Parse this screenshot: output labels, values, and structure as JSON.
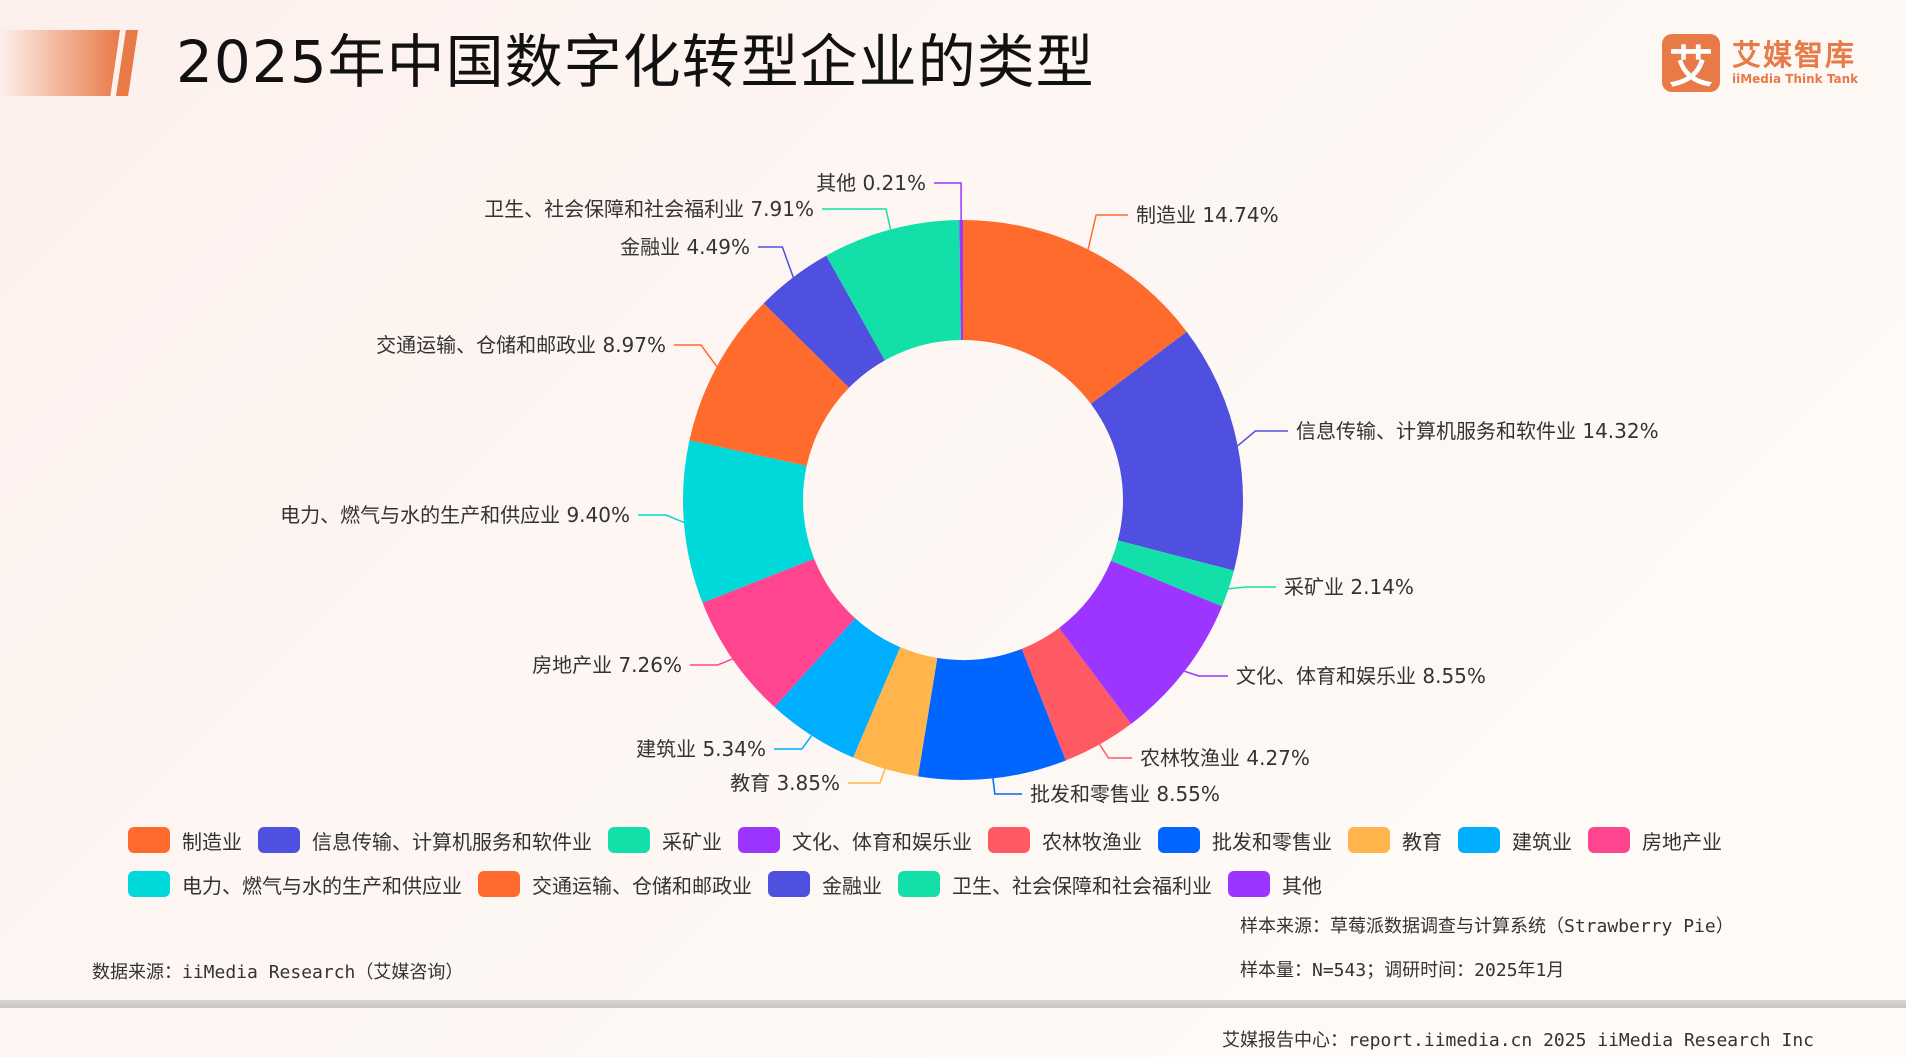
{
  "header": {
    "title": "2025年中国数字化转型企业的类型",
    "logo_glyph": "艾",
    "logo_cn": "艾媒智库",
    "logo_en": "iiMedia Think Tank",
    "brand_color": "#e87a48"
  },
  "chart_data": {
    "type": "pie",
    "subtype": "donut",
    "title": "2025年中国数字化转型企业的类型",
    "unit": "%",
    "start_angle": "12 o'clock, clockwise",
    "legend_position": "bottom",
    "categories": [
      "制造业",
      "信息传输、计算机服务和软件业",
      "采矿业",
      "文化、体育和娱乐业",
      "农林牧渔业",
      "批发和零售业",
      "教育",
      "建筑业",
      "房地产业",
      "电力、燃气与水的生产和供应业",
      "交通运输、仓储和邮政业",
      "金融业",
      "卫生、社会保障和社会福利业",
      "其他"
    ],
    "values": [
      14.74,
      14.32,
      2.14,
      8.55,
      4.27,
      8.55,
      3.85,
      5.34,
      7.26,
      9.4,
      8.97,
      4.49,
      7.91,
      0.21
    ],
    "colors": [
      "#ff6b2c",
      "#5050e0",
      "#12e0a8",
      "#9b35ff",
      "#ff5a62",
      "#0066ff",
      "#ffb54c",
      "#00aeff",
      "#ff4590",
      "#00d9d9",
      "#ff6b2c",
      "#5050e0",
      "#12e0a8",
      "#9b35ff"
    ],
    "labels": [
      "制造业 14.74%",
      "信息传输、计算机服务和软件业 14.32%",
      "采矿业 2.14%",
      "文化、体育和娱乐业 8.55%",
      "农林牧渔业 4.27%",
      "批发和零售业 8.55%",
      "教育 3.85%",
      "建筑业 5.34%",
      "房地产业 7.26%",
      "电力、燃气与水的生产和供应业 9.40%",
      "交通运输、仓储和邮政业 8.97%",
      "金融业 4.49%",
      "卫生、社会保障和社会福利业 7.91%",
      "其他 0.21%"
    ]
  },
  "legend": {
    "rows": [
      [
        0,
        1,
        2,
        3,
        4,
        5,
        6,
        7,
        8
      ],
      [
        9,
        10,
        11,
        12,
        13
      ]
    ]
  },
  "footer": {
    "data_source": "数据来源：iiMedia Research（艾媒咨询）",
    "sample_source": "样本来源：草莓派数据调查与计算系统（Strawberry Pie）",
    "sample_size": "样本量：N=543；调研时间：2025年1月",
    "report_center": "艾媒报告中心：report.iimedia.cn   2025 iiMedia Research Inc"
  }
}
